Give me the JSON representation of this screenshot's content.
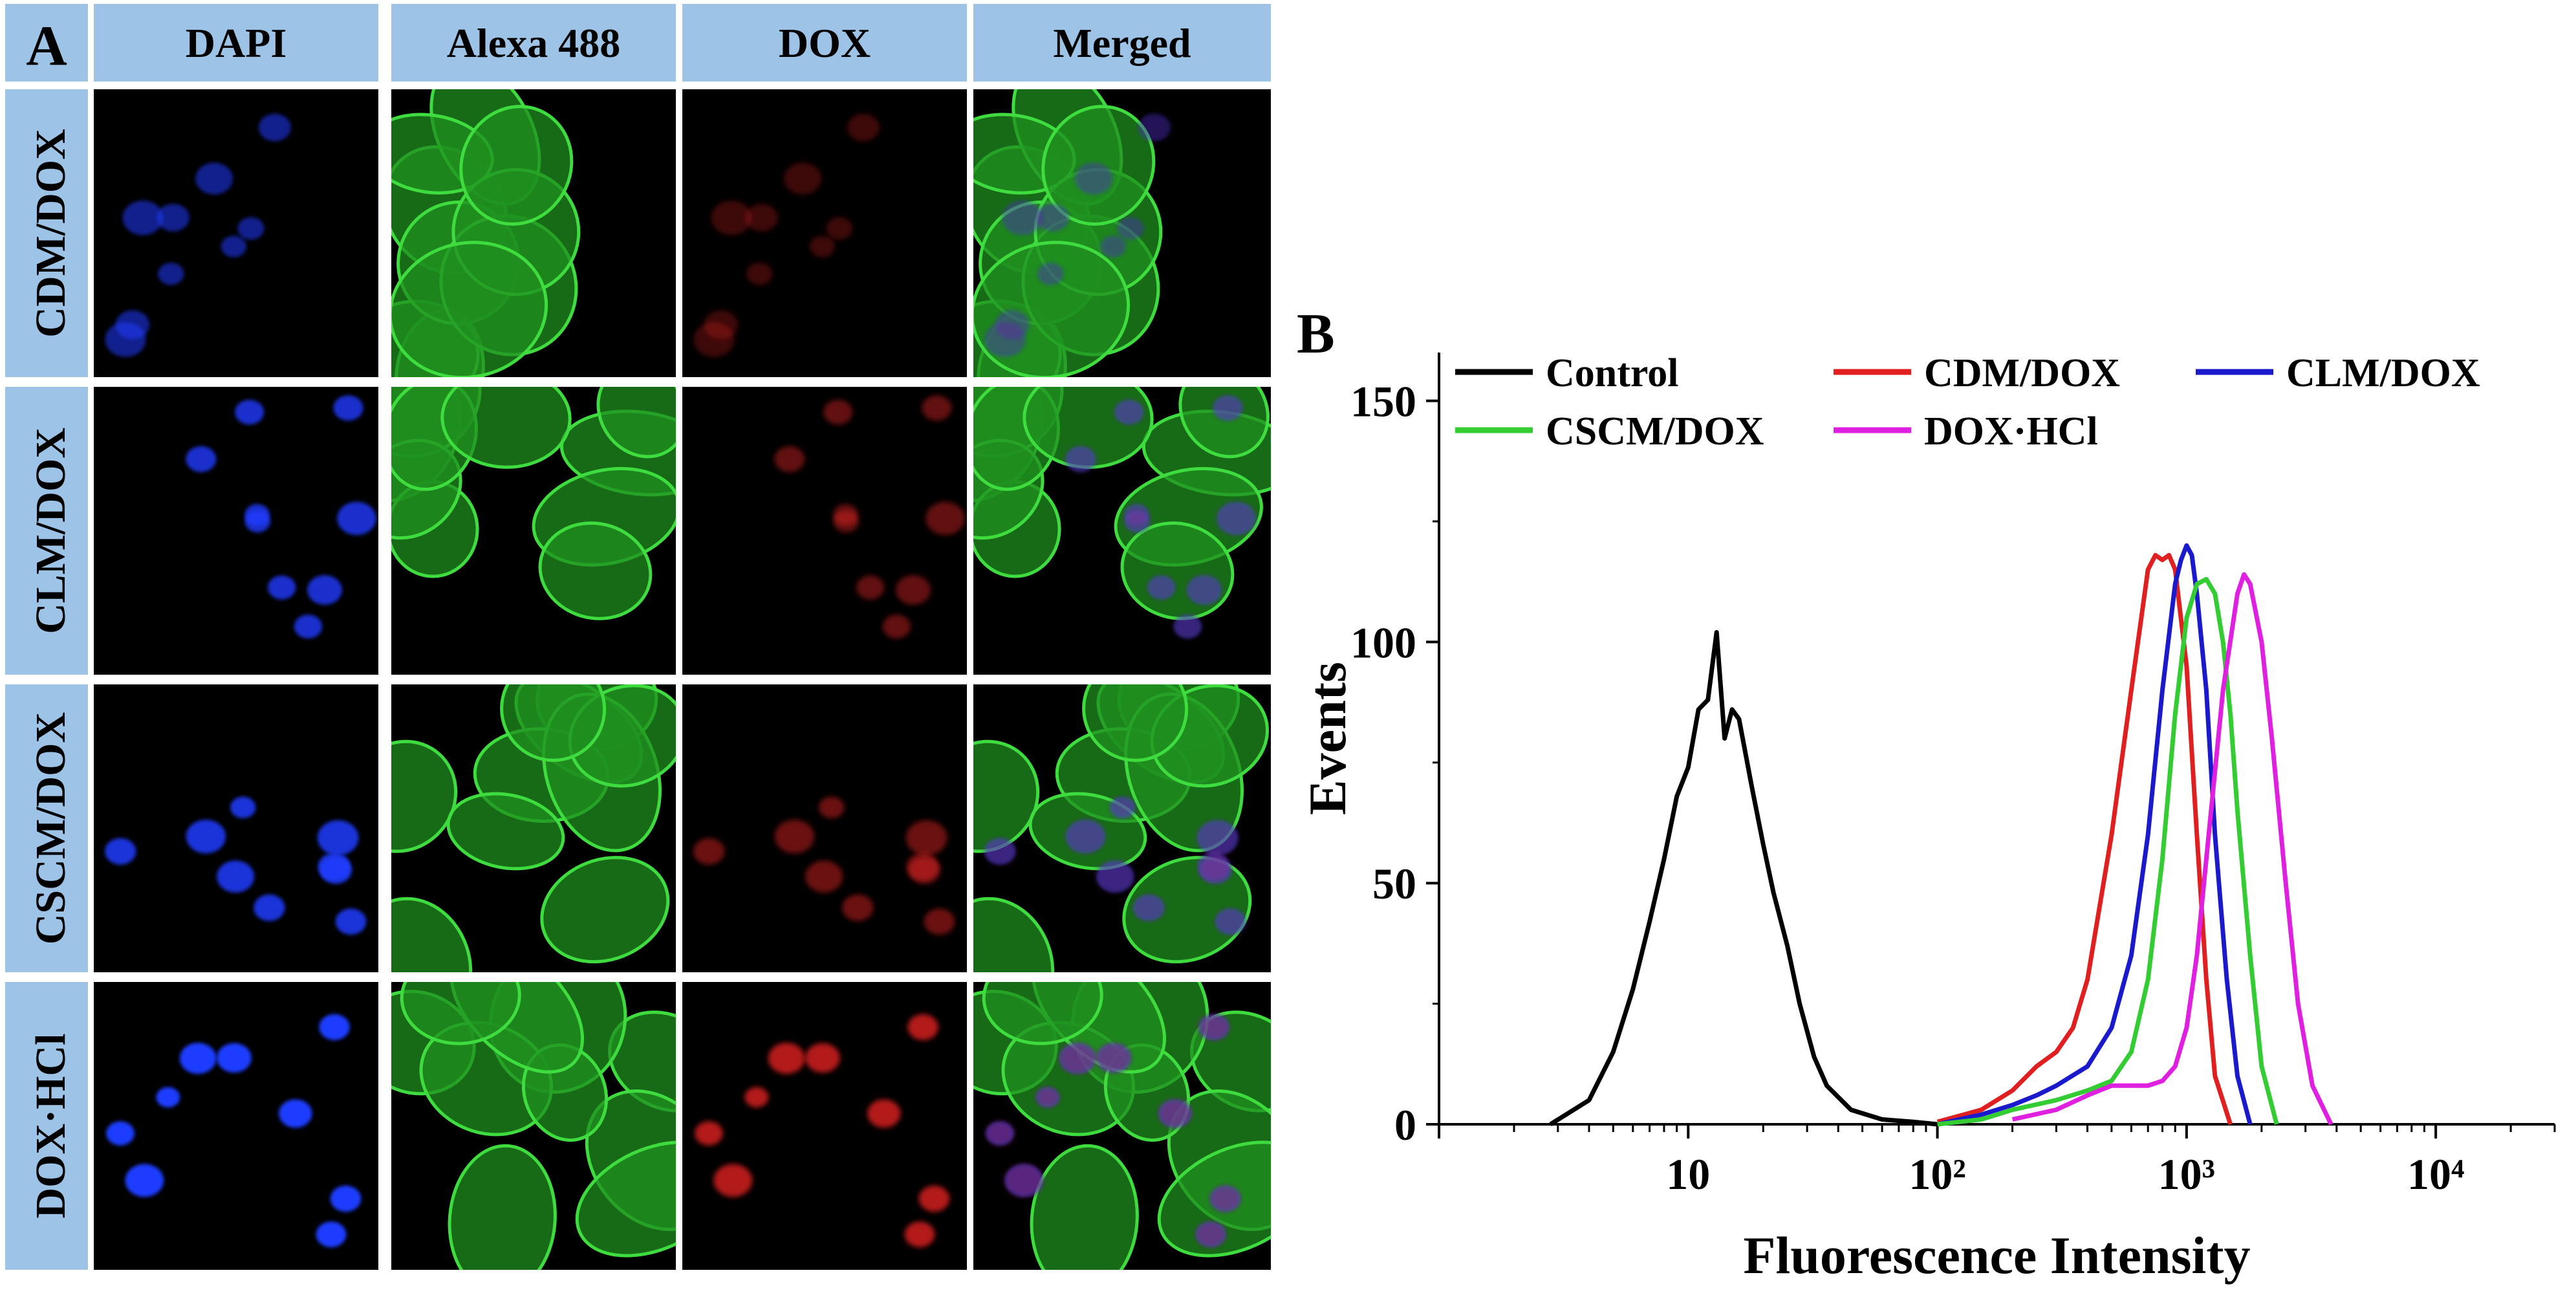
{
  "panel_a": {
    "letter": "A",
    "columns": [
      "DAPI",
      "Alexa 488",
      "DOX",
      "Merged"
    ],
    "rows": [
      "CDM/DOX",
      "CLM/DOX",
      "CSCM/DOX",
      "DOX·HCl"
    ],
    "colors": {
      "header_fill": "#9dc3e6",
      "dapi": "#1e3cff",
      "alexa": "#3fdc3f",
      "dox": "#e02020",
      "background": "#000000"
    }
  },
  "panel_b": {
    "letter": "B"
  },
  "chart_data": {
    "type": "line",
    "xlabel": "Fluorescence Intensity",
    "ylabel": "Events",
    "x_scale": "log",
    "xlim": [
      1,
      30000
    ],
    "ylim": [
      0,
      160
    ],
    "x_ticks": [
      10,
      100,
      1000,
      10000
    ],
    "x_tick_labels": [
      "10",
      "10²",
      "10³",
      "10⁴"
    ],
    "y_ticks": [
      0,
      50,
      100,
      150
    ],
    "y_tick_labels": [
      "0",
      "50",
      "100",
      "150"
    ],
    "legend_position": "top",
    "series": [
      {
        "name": "Control",
        "color": "#000000",
        "x": [
          2.8,
          4,
          5,
          6,
          7,
          8,
          9,
          10,
          11,
          12,
          13,
          14,
          15,
          16,
          18,
          20,
          22,
          25,
          28,
          32,
          36,
          45,
          60,
          80,
          100
        ],
        "y": [
          0,
          5,
          15,
          28,
          42,
          55,
          68,
          74,
          86,
          88,
          102,
          80,
          86,
          84,
          70,
          58,
          48,
          37,
          25,
          14,
          8,
          3,
          1,
          0.5,
          0
        ]
      },
      {
        "name": "CDM/DOX",
        "color": "#e02020",
        "x": [
          100,
          150,
          200,
          250,
          300,
          350,
          400,
          500,
          600,
          700,
          750,
          800,
          850,
          900,
          1000,
          1100,
          1200,
          1300,
          1500
        ],
        "y": [
          0.5,
          3,
          7,
          12,
          15,
          20,
          30,
          60,
          90,
          115,
          118,
          117,
          118,
          115,
          95,
          60,
          30,
          10,
          0
        ]
      },
      {
        "name": "CLM/DOX",
        "color": "#1a1acc",
        "x": [
          100,
          150,
          200,
          250,
          300,
          400,
          500,
          600,
          700,
          800,
          900,
          950,
          1000,
          1050,
          1100,
          1200,
          1300,
          1450,
          1600,
          1800
        ],
        "y": [
          0,
          2,
          4,
          6,
          8,
          12,
          20,
          35,
          60,
          90,
          112,
          117,
          120,
          118,
          110,
          90,
          60,
          30,
          10,
          0
        ]
      },
      {
        "name": "CSCM/DOX",
        "color": "#33cc33",
        "x": [
          100,
          150,
          200,
          300,
          400,
          500,
          600,
          700,
          800,
          900,
          1000,
          1100,
          1200,
          1300,
          1400,
          1500,
          1600,
          1800,
          2000,
          2300
        ],
        "y": [
          0,
          1,
          3,
          5,
          7,
          9,
          15,
          30,
          55,
          85,
          105,
          112,
          113,
          110,
          100,
          85,
          65,
          35,
          12,
          0
        ]
      },
      {
        "name": "DOX·HCl",
        "color": "#e020e0",
        "x": [
          200,
          300,
          400,
          500,
          600,
          700,
          800,
          900,
          1000,
          1100,
          1200,
          1400,
          1600,
          1700,
          1800,
          2000,
          2200,
          2500,
          2800,
          3200,
          3800
        ],
        "y": [
          1,
          3,
          6,
          8,
          8,
          8,
          9,
          12,
          20,
          35,
          55,
          90,
          110,
          114,
          112,
          100,
          80,
          50,
          25,
          8,
          0
        ]
      }
    ]
  }
}
